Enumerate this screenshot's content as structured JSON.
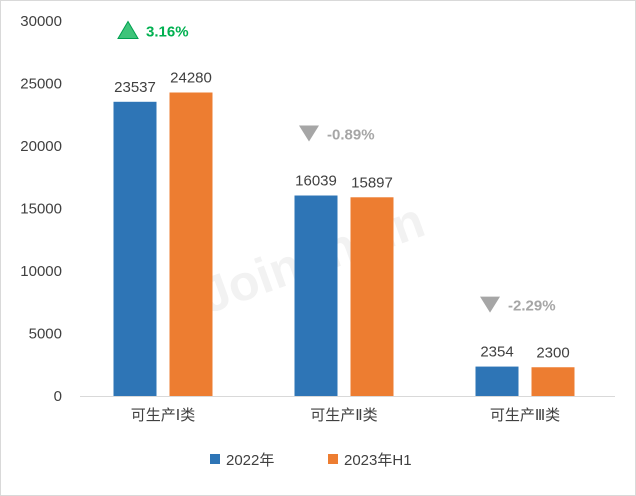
{
  "chart_data": {
    "type": "bar",
    "categories": [
      "可生产Ⅰ类",
      "可生产Ⅱ类",
      "可生产Ⅲ类"
    ],
    "series": [
      {
        "name": "2022年",
        "values": [
          23537,
          16039,
          2354
        ],
        "color": "#2e75b6"
      },
      {
        "name": "2023年H1",
        "values": [
          24280,
          15897,
          2300
        ],
        "color": "#ed7d31"
      }
    ],
    "ylim": [
      0,
      30000
    ],
    "yticks": [
      0,
      5000,
      10000,
      15000,
      20000,
      25000,
      30000
    ],
    "grid": false,
    "legend": "bottom",
    "annotations": [
      {
        "text": "3.16%",
        "direction": "up",
        "color": "#00b050"
      },
      {
        "text": "-0.89%",
        "direction": "down",
        "color": "#a6a6a6"
      },
      {
        "text": "-2.29%",
        "direction": "down",
        "color": "#a6a6a6"
      }
    ],
    "watermark": "Joinchain"
  }
}
